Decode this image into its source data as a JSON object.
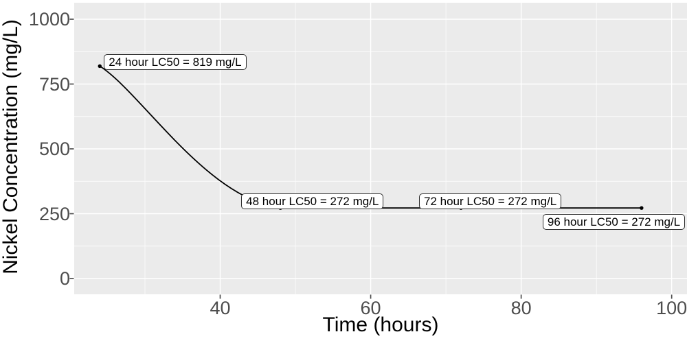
{
  "chart_data": {
    "type": "line",
    "title": "",
    "xlabel": "Time (hours)",
    "ylabel": "Nickel Concentration (mg/L)",
    "series": [
      {
        "name": "LC50",
        "points": [
          {
            "x": 24,
            "y": 819,
            "label": "24 hour LC50 = 819 mg/L"
          },
          {
            "x": 48,
            "y": 272,
            "label": "48 hour LC50 = 272 mg/L"
          },
          {
            "x": 72,
            "y": 272,
            "label": "72 hour LC50 = 272 mg/L"
          },
          {
            "x": 96,
            "y": 272,
            "label": "96 hour LC50 = 272 mg/L"
          }
        ]
      }
    ],
    "x_ticks": [
      40,
      60,
      80,
      100
    ],
    "y_ticks": [
      0,
      250,
      500,
      750,
      1000
    ],
    "x_minor_gridlines": [
      30,
      50,
      70,
      90
    ],
    "y_minor_gridlines": [
      125,
      375,
      625,
      875
    ],
    "xlim": [
      20.5,
      102.1
    ],
    "ylim": [
      0,
      1000
    ],
    "grid": "white major and minor gridlines on gray panel",
    "legend": "none",
    "style": {
      "panel_bg": "#EBEBEB",
      "grid_color": "#FFFFFF",
      "line_color": "#000000",
      "point_color": "#000000",
      "tick_label_color": "#4D4D4D",
      "axis_title_color": "#000000",
      "label_bg": "#FFFFFF",
      "label_border": "#2E2E2E",
      "label_text": "#000000"
    }
  }
}
